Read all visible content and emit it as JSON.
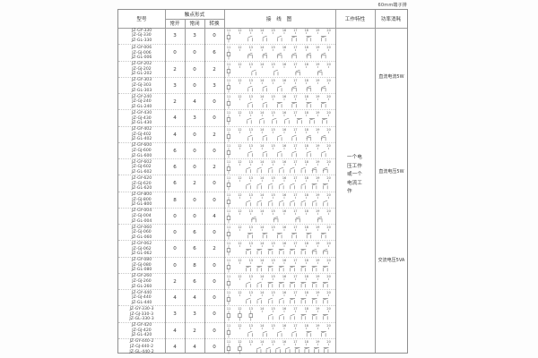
{
  "page": {
    "corner_label": "60mm端子排"
  },
  "table": {
    "headers": {
      "model": "型号",
      "contact_form": "触点形式",
      "normally_open": "常开",
      "normally_closed": "常闭",
      "changeover": "转换",
      "wiring_diagram": "接 线 图",
      "working_characteristics": "工作特性",
      "power_consumption": "功率消耗"
    },
    "terminal_numbers": [
      "11",
      "12",
      "13",
      "14",
      "15",
      "16",
      "17",
      "18",
      "19",
      "20"
    ],
    "rows": [
      {
        "models": [
          "JZ-GY-330",
          "JZ-GJ-330",
          "JZ-GL-330"
        ],
        "no": "3",
        "nc": "3",
        "co": "0",
        "coils": 1
      },
      {
        "models": [
          "JZ-GY-006",
          "JZ-GJ-006",
          "JZ-GL-006"
        ],
        "no": "0",
        "nc": "0",
        "co": "6",
        "coils": 1
      },
      {
        "models": [
          "JZ-GY-202",
          "JZ-GJ-202",
          "JZ-GL-202"
        ],
        "no": "2",
        "nc": "0",
        "co": "2",
        "coils": 1
      },
      {
        "models": [
          "JZ-GY-303",
          "JZ-GJ-303",
          "JZ-GL-303"
        ],
        "no": "3",
        "nc": "0",
        "co": "3",
        "coils": 1
      },
      {
        "models": [
          "JZ-GY-240",
          "JZ-GJ-240",
          "JZ-GL-240"
        ],
        "no": "2",
        "nc": "4",
        "co": "0",
        "coils": 1
      },
      {
        "models": [
          "JZ-GY-430",
          "JZ-GJ-430",
          "JZ-GL-430"
        ],
        "no": "4",
        "nc": "3",
        "co": "0",
        "coils": 1
      },
      {
        "models": [
          "JZ-GY-402",
          "JZ-GJ-402",
          "JZ-GL-402"
        ],
        "no": "4",
        "nc": "0",
        "co": "2",
        "coils": 1
      },
      {
        "models": [
          "JZ-GY-600",
          "JZ-GJ-600",
          "JZ-GL-600"
        ],
        "no": "6",
        "nc": "0",
        "co": "0",
        "coils": 1
      },
      {
        "models": [
          "JZ-GY-602",
          "JZ-GJ-602",
          "JZ-GL-602"
        ],
        "no": "6",
        "nc": "0",
        "co": "2",
        "coils": 1
      },
      {
        "models": [
          "JZ-GY-620",
          "JZ-GJ-620",
          "JZ-GL-620"
        ],
        "no": "6",
        "nc": "2",
        "co": "0",
        "coils": 1
      },
      {
        "models": [
          "JZ-GY-800",
          "JZ-GJ-800",
          "JZ-GL-800"
        ],
        "no": "8",
        "nc": "0",
        "co": "0",
        "coils": 1
      },
      {
        "models": [
          "JZ-GY-004",
          "JZ-GJ-004",
          "JZ-GL-004"
        ],
        "no": "0",
        "nc": "0",
        "co": "4",
        "coils": 1
      },
      {
        "models": [
          "JZ-GY-060",
          "JZ-GJ-060",
          "JZ-GL-060"
        ],
        "no": "0",
        "nc": "6",
        "co": "0",
        "coils": 1
      },
      {
        "models": [
          "JZ-GY-062",
          "JZ-GJ-062",
          "JZ-GL-062"
        ],
        "no": "0",
        "nc": "6",
        "co": "2",
        "coils": 1
      },
      {
        "models": [
          "JZ-GY-080",
          "JZ-GJ-080",
          "JZ-GL-080"
        ],
        "no": "0",
        "nc": "8",
        "co": "0",
        "coils": 1
      },
      {
        "models": [
          "JZ-GY-260",
          "JZ-GJ-260",
          "JZ-GL-260"
        ],
        "no": "2",
        "nc": "6",
        "co": "0",
        "coils": 1
      },
      {
        "models": [
          "JZ-GY-440",
          "JZ-GJ-440",
          "JZ-GL-440"
        ],
        "no": "4",
        "nc": "4",
        "co": "0",
        "coils": 1
      },
      {
        "models": [
          "JZ-GY-330-3",
          "JZ-GJ-330-3",
          "JZ-GL-330-3"
        ],
        "no": "3",
        "nc": "3",
        "co": "0",
        "coils": 3
      },
      {
        "models": [
          "JZ-GY-420",
          "JZ-GJ-420",
          "JZ-GL-420"
        ],
        "no": "4",
        "nc": "2",
        "co": "0",
        "coils": 1
      },
      {
        "models": [
          "JZ-GY-440-2",
          "JZ-GJ-440-2",
          "JZ-GL-440-2"
        ],
        "no": "4",
        "nc": "4",
        "co": "0",
        "coils": 2
      }
    ],
    "working_note": "一个电压工作或一个电流工作",
    "power_notes": [
      "直流电流5W",
      "直流电压5W",
      "交流电压5VA"
    ]
  }
}
